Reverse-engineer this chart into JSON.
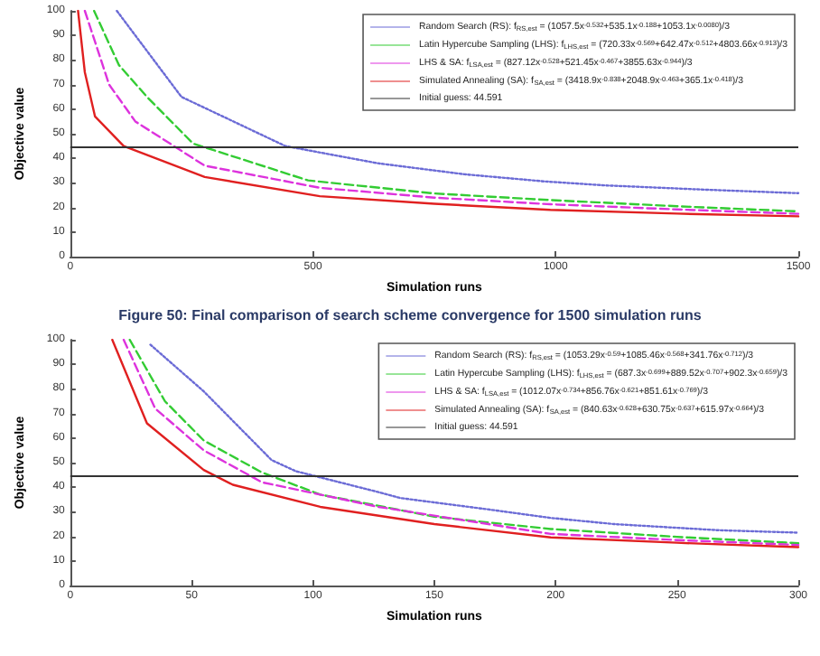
{
  "chart_data": [
    {
      "type": "line",
      "xlabel": "Simulation runs",
      "ylabel": "Objective value",
      "xlim": [
        0,
        1500
      ],
      "xticks": [
        0,
        500,
        1000,
        1500
      ],
      "ylim": [
        0,
        100
      ],
      "yticks": [
        0,
        10,
        20,
        30,
        40,
        50,
        60,
        70,
        80,
        90,
        100
      ],
      "grid": false,
      "legend": "top right",
      "marker": "none",
      "annotations": [
        "Figure 50: Final comparison of search scheme convergence for 1500 simulation runs"
      ],
      "ref_lines": [
        {
          "axis": "y",
          "value": 44.591,
          "label": "Initial guess: 44.591",
          "color": "#333333"
        }
      ],
      "series": [
        {
          "name": "Random Search (RS): f$_{RS,est}$ = (1057.5x$^{-0.532}$+535.1x$^{-0.188}$+1053.1x$^{-0.0080}$)/3",
          "color": "#6b6bd6",
          "line_style": "dotted",
          "x": [
            96,
            229,
            443,
            633,
            812,
            977,
            1100,
            1300,
            1500
          ],
          "values": [
            100,
            65,
            45,
            38,
            33.5,
            30.6,
            29,
            27.3,
            25.8
          ]
        },
        {
          "name": "Latin Hypercube Sampling (LHS): f$_{LHS,est}$ = (720.33x$^{-0.569}$+642.47x$^{-0.512}$+4803.66x$^{-0.913}$)/3",
          "color": "#33cc33",
          "line_style": "dashed",
          "x": [
            49,
            100,
            158,
            253,
            490,
            750,
            989,
            1250,
            1500
          ],
          "values": [
            100,
            78,
            65,
            46,
            31,
            25.7,
            23,
            20.5,
            18.4
          ]
        },
        {
          "name": "LHS & SA: f$_{LSA,est}$ = (827.12x$^{-0.528}$+521.45x$^{-0.467}$+3855.63x$^{-0.944}$)/3",
          "color": "#dd33dd",
          "line_style": "dashed",
          "x": [
            30,
            80,
            134,
            277,
            514,
            750,
            989,
            1250,
            1500
          ],
          "values": [
            100,
            70,
            55,
            37,
            28,
            24,
            21.3,
            19.2,
            17.4
          ]
        },
        {
          "name": "Simulated Annealing (SA): f$_{SA,est}$ = (3418.9x$^{-0.838}$+2048.9x$^{-0.463}$+365.1x$^{-0.418}$)/3",
          "color": "#e02020",
          "line_style": "solid",
          "x": [
            16,
            30,
            51,
            110,
            277,
            514,
            750,
            989,
            1250,
            1500
          ],
          "values": [
            100,
            75,
            57,
            45,
            32.4,
            24.6,
            21.5,
            19,
            17.5,
            16.4
          ]
        }
      ]
    },
    {
      "type": "line",
      "xlabel": "Simulation runs",
      "ylabel": "Objective value",
      "xlim": [
        0,
        300
      ],
      "xticks": [
        0,
        50,
        100,
        150,
        200,
        250,
        300
      ],
      "ylim": [
        0,
        100
      ],
      "yticks": [
        0,
        10,
        20,
        30,
        40,
        50,
        60,
        70,
        80,
        90,
        100
      ],
      "grid": false,
      "legend": "top right",
      "marker": "none",
      "ref_lines": [
        {
          "axis": "y",
          "value": 44.591,
          "label": "Initial guess: 44.591",
          "color": "#333333"
        }
      ],
      "series": [
        {
          "name": "Random Search (RS): f$_{RS,est}$ = (1053.29x$^{-0.59}$+1085.46x$^{-0.568}$+341.76x$^{-0.712}$)/3",
          "color": "#6b6bd6",
          "line_style": "dotted",
          "x": [
            33,
            55,
            83,
            93,
            127,
            136,
            172,
            198,
            224,
            267,
            300
          ],
          "values": [
            98,
            79,
            51,
            46.5,
            38,
            35.6,
            31,
            27.5,
            25,
            22.5,
            21.5
          ]
        },
        {
          "name": "Latin Hypercube Sampling (LHS): f$_{LHS,est}$ = (687.3x$^{-0.699}$+889.52x$^{-0.707}$+902.3x$^{-0.659}$)/3",
          "color": "#33cc33",
          "line_style": "dashed",
          "x": [
            24.5,
            39,
            55,
            79,
            103,
            150,
            198,
            250,
            300
          ],
          "values": [
            100,
            75,
            59,
            46,
            37,
            28,
            23,
            19.8,
            17.2
          ]
        },
        {
          "name": "LHS & SA: f$_{LSA,est}$ = (1012.07x$^{-0.734}$+856.76x$^{-0.621}$+851.61x$^{-0.769}$)/3",
          "color": "#dd33dd",
          "line_style": "dashed",
          "x": [
            22,
            35,
            55,
            79,
            127,
            198,
            250,
            300
          ],
          "values": [
            100,
            72,
            55,
            42,
            32,
            21,
            18.5,
            16.5
          ]
        },
        {
          "name": "Simulated Annealing (SA): f$_{SA,est}$ = (840.63x$^{-0.628}$+630.75x$^{-0.637}$+615.97x$^{-0.664}$)/3",
          "color": "#e02020",
          "line_style": "solid",
          "x": [
            17.3,
            31.6,
            55,
            67,
            103,
            150,
            198,
            250,
            300
          ],
          "values": [
            100,
            66,
            47,
            41,
            32,
            25,
            19.6,
            17.4,
            15.6
          ]
        }
      ]
    }
  ]
}
